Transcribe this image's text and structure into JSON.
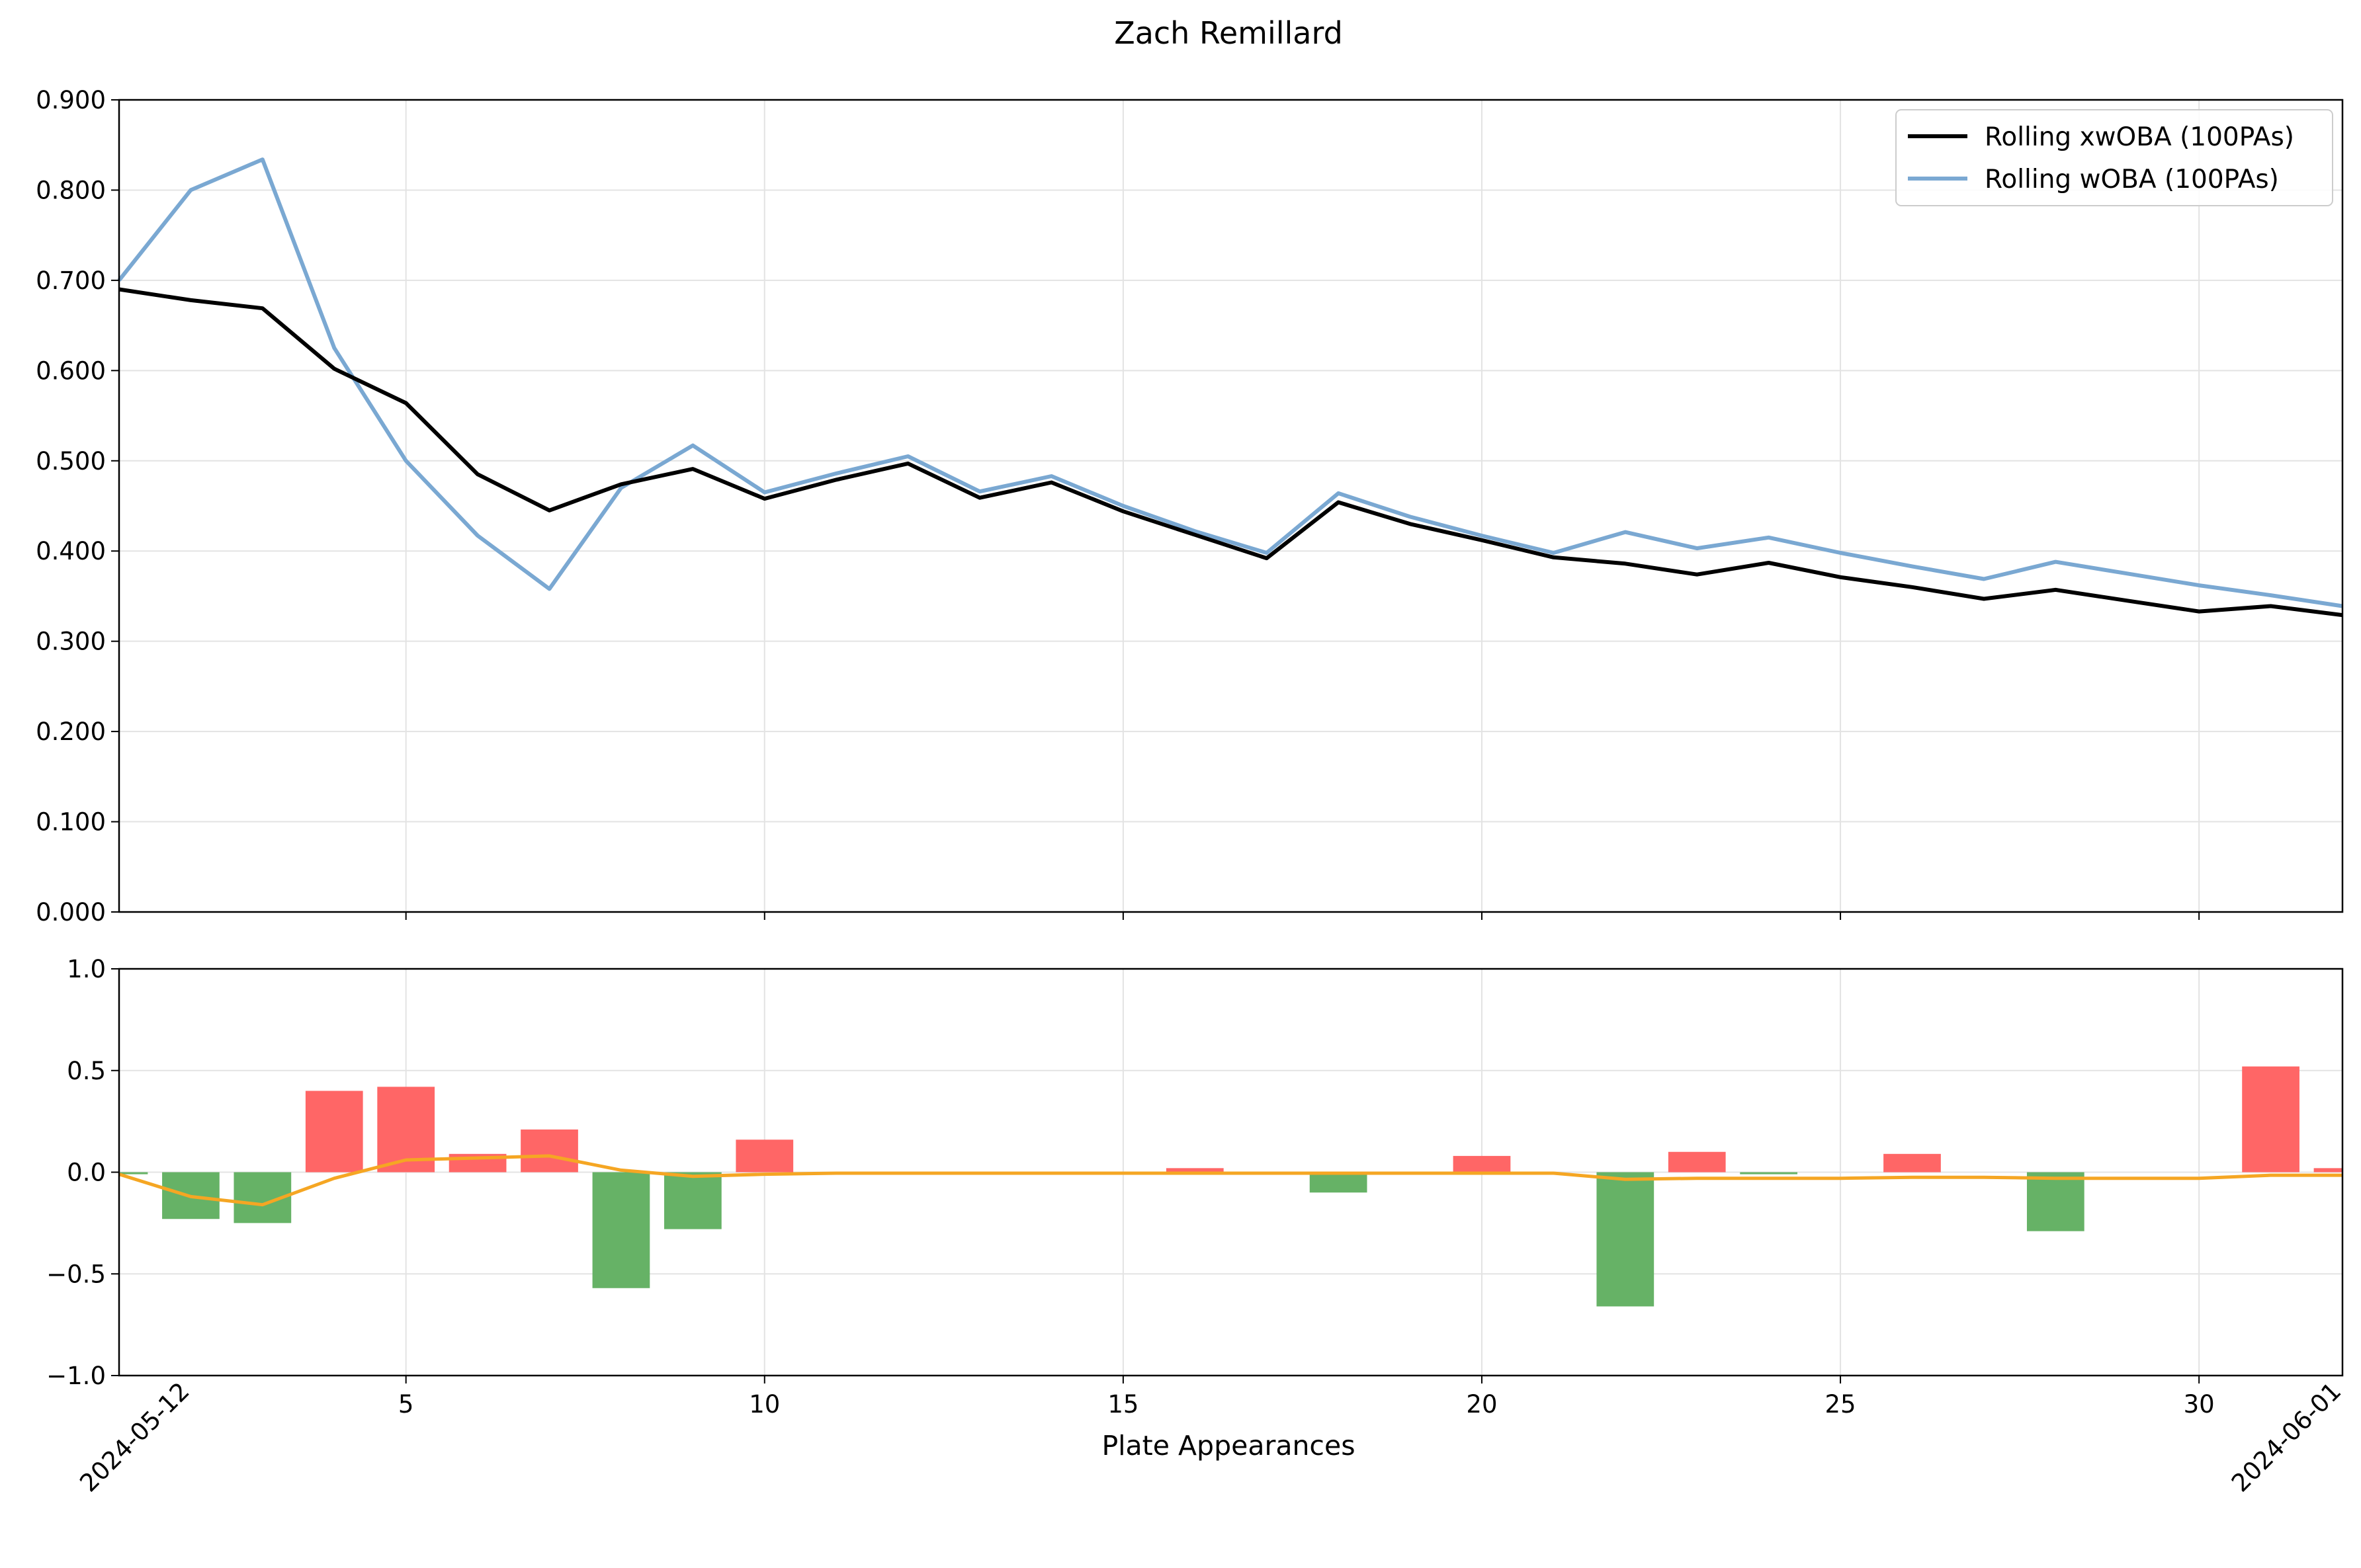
{
  "chart_data": [
    {
      "type": "line",
      "title": "Zach Remillard",
      "x": [
        1,
        2,
        3,
        4,
        5,
        6,
        7,
        8,
        9,
        10,
        11,
        12,
        13,
        14,
        15,
        16,
        17,
        18,
        19,
        20,
        21,
        22,
        23,
        24,
        25,
        26,
        27,
        28,
        29,
        30,
        31,
        32
      ],
      "xlim": [
        1,
        32
      ],
      "ylim": [
        0,
        0.9
      ],
      "x_ticks": [
        5,
        10,
        15,
        20,
        25,
        30
      ],
      "y_ticks": [
        "0.000",
        "0.100",
        "0.200",
        "0.300",
        "0.400",
        "0.500",
        "0.600",
        "0.700",
        "0.800",
        "0.900"
      ],
      "grid": true,
      "legend_position": "upper right",
      "series": [
        {
          "name": "Rolling xwOBA (100PAs)",
          "color": "#000000",
          "values": [
            0.69,
            0.678,
            0.669,
            0.602,
            0.564,
            0.485,
            0.445,
            0.474,
            0.491,
            0.458,
            0.479,
            0.497,
            0.459,
            0.476,
            0.444,
            0.418,
            0.392,
            0.454,
            0.43,
            0.412,
            0.393,
            0.386,
            0.374,
            0.387,
            0.371,
            0.36,
            0.347,
            0.357,
            0.345,
            0.333,
            0.339,
            0.329
          ]
        },
        {
          "name": "Rolling wOBA (100PAs)",
          "color": "#7aa8d2",
          "values": [
            0.7,
            0.8,
            0.834,
            0.625,
            0.5,
            0.417,
            0.358,
            0.47,
            0.517,
            0.465,
            0.486,
            0.505,
            0.466,
            0.483,
            0.45,
            0.422,
            0.398,
            0.464,
            0.438,
            0.417,
            0.398,
            0.421,
            0.403,
            0.415,
            0.398,
            0.383,
            0.369,
            0.388,
            0.375,
            0.362,
            0.351,
            0.339
          ]
        }
      ]
    },
    {
      "type": "bar",
      "x": [
        1,
        2,
        3,
        4,
        5,
        6,
        7,
        8,
        9,
        10,
        11,
        12,
        13,
        14,
        15,
        16,
        17,
        18,
        19,
        20,
        21,
        22,
        23,
        24,
        25,
        26,
        27,
        28,
        29,
        30,
        31,
        32
      ],
      "xlim": [
        1,
        32
      ],
      "ylim": [
        -1,
        1
      ],
      "x_ticks": [
        5,
        10,
        15,
        20,
        25,
        30
      ],
      "y_ticks": [
        "−1.0",
        "−0.5",
        "0.0",
        "0.5",
        "1.0"
      ],
      "xlabel": "Plate Appearances",
      "date_labels": [
        {
          "x": 2,
          "label": "2024-05-12"
        },
        {
          "x": 32,
          "label": "2024-06-01"
        }
      ],
      "grid": true,
      "positive_color": "#ff6666",
      "negative_color": "#66b266",
      "values": [
        -0.01,
        -0.23,
        -0.25,
        0.4,
        0.42,
        0.09,
        0.21,
        -0.57,
        -0.28,
        0.16,
        0,
        0,
        0,
        0,
        0,
        0.02,
        0,
        -0.1,
        0,
        0.08,
        0,
        -0.66,
        0.1,
        -0.01,
        0,
        0.09,
        0,
        -0.29,
        0,
        0,
        0.52,
        0.02
      ],
      "trend": {
        "color": "#f5a623",
        "values": [
          -0.01,
          -0.12,
          -0.16,
          -0.03,
          0.06,
          0.07,
          0.08,
          0.01,
          -0.02,
          -0.01,
          -0.005,
          -0.005,
          -0.005,
          -0.005,
          -0.005,
          -0.005,
          -0.005,
          -0.005,
          -0.005,
          -0.005,
          -0.005,
          -0.035,
          -0.03,
          -0.03,
          -0.03,
          -0.025,
          -0.025,
          -0.03,
          -0.03,
          -0.03,
          -0.015,
          -0.015
        ]
      }
    }
  ]
}
